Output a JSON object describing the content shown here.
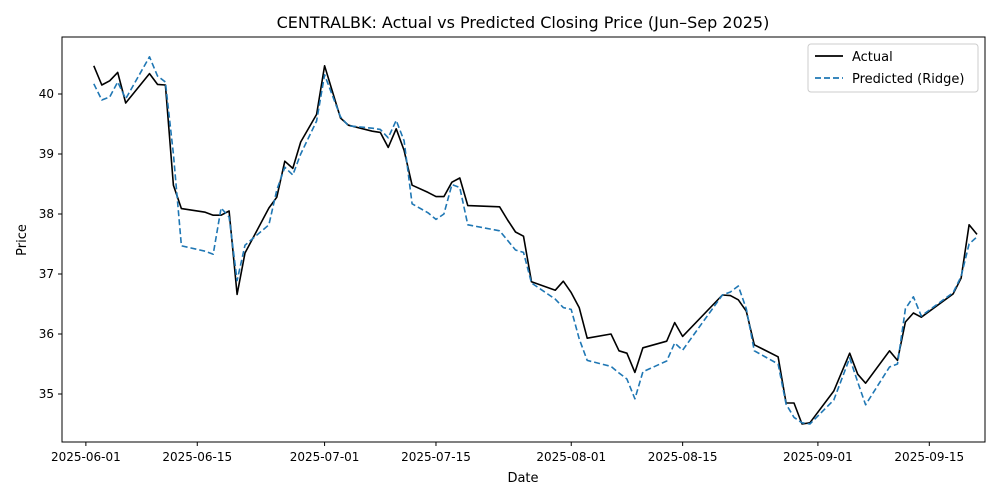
{
  "chart_data": {
    "type": "line",
    "title": "CENTRALBK: Actual vs Predicted Closing Price (Jun–Sep 2025)",
    "xlabel": "Date",
    "ylabel": "Price",
    "xlim": [
      "2025-05-29",
      "2025-09-22"
    ],
    "ylim": [
      34.2,
      40.95
    ],
    "x_ticks": [
      "2025-06-01",
      "2025-06-15",
      "2025-07-01",
      "2025-07-15",
      "2025-08-01",
      "2025-08-15",
      "2025-09-01",
      "2025-09-15"
    ],
    "y_ticks": [
      35,
      36,
      37,
      38,
      39,
      40
    ],
    "grid": false,
    "legend_position": "top-right",
    "series": [
      {
        "name": "Actual",
        "color": "#000000",
        "style": "solid",
        "points": [
          [
            "2025-06-02",
            40.47
          ],
          [
            "2025-06-03",
            40.15
          ],
          [
            "2025-06-04",
            40.22
          ],
          [
            "2025-06-05",
            40.36
          ],
          [
            "2025-06-06",
            39.85
          ],
          [
            "2025-06-09",
            40.34
          ],
          [
            "2025-06-10",
            40.16
          ],
          [
            "2025-06-11",
            40.15
          ],
          [
            "2025-06-12",
            38.48
          ],
          [
            "2025-06-13",
            38.09
          ],
          [
            "2025-06-16",
            38.03
          ],
          [
            "2025-06-17",
            37.98
          ],
          [
            "2025-06-18",
            37.98
          ],
          [
            "2025-06-19",
            38.05
          ],
          [
            "2025-06-20",
            36.66
          ],
          [
            "2025-06-21",
            37.35
          ],
          [
            "2025-06-24",
            38.1
          ],
          [
            "2025-06-25",
            38.28
          ],
          [
            "2025-06-26",
            38.88
          ],
          [
            "2025-06-27",
            38.76
          ],
          [
            "2025-06-28",
            39.2
          ],
          [
            "2025-06-30",
            39.66
          ],
          [
            "2025-07-01",
            40.47
          ],
          [
            "2025-07-03",
            39.6
          ],
          [
            "2025-07-04",
            39.48
          ],
          [
            "2025-07-07",
            39.38
          ],
          [
            "2025-07-08",
            39.36
          ],
          [
            "2025-07-09",
            39.11
          ],
          [
            "2025-07-10",
            39.42
          ],
          [
            "2025-07-11",
            39.06
          ],
          [
            "2025-07-12",
            38.48
          ],
          [
            "2025-07-14",
            38.36
          ],
          [
            "2025-07-15",
            38.29
          ],
          [
            "2025-07-16",
            38.29
          ],
          [
            "2025-07-17",
            38.53
          ],
          [
            "2025-07-18",
            38.6
          ],
          [
            "2025-07-19",
            38.14
          ],
          [
            "2025-07-23",
            38.12
          ],
          [
            "2025-07-24",
            37.9
          ],
          [
            "2025-07-25",
            37.7
          ],
          [
            "2025-07-26",
            37.63
          ],
          [
            "2025-07-27",
            36.87
          ],
          [
            "2025-07-30",
            36.73
          ],
          [
            "2025-07-31",
            36.88
          ],
          [
            "2025-08-01",
            36.69
          ],
          [
            "2025-08-02",
            36.44
          ],
          [
            "2025-08-03",
            35.93
          ],
          [
            "2025-08-06",
            36.0
          ],
          [
            "2025-08-07",
            35.72
          ],
          [
            "2025-08-08",
            35.68
          ],
          [
            "2025-08-09",
            35.36
          ],
          [
            "2025-08-10",
            35.77
          ],
          [
            "2025-08-13",
            35.88
          ],
          [
            "2025-08-14",
            36.19
          ],
          [
            "2025-08-15",
            35.96
          ],
          [
            "2025-08-20",
            36.65
          ],
          [
            "2025-08-21",
            36.64
          ],
          [
            "2025-08-22",
            36.57
          ],
          [
            "2025-08-23",
            36.38
          ],
          [
            "2025-08-24",
            35.82
          ],
          [
            "2025-08-27",
            35.62
          ],
          [
            "2025-08-28",
            34.85
          ],
          [
            "2025-08-29",
            34.85
          ],
          [
            "2025-08-30",
            34.5
          ],
          [
            "2025-08-31",
            34.52
          ],
          [
            "2025-09-03",
            35.05
          ],
          [
            "2025-09-05",
            35.68
          ],
          [
            "2025-09-06",
            35.33
          ],
          [
            "2025-09-07",
            35.18
          ],
          [
            "2025-09-10",
            35.72
          ],
          [
            "2025-09-11",
            35.56
          ],
          [
            "2025-09-12",
            36.2
          ],
          [
            "2025-09-13",
            36.35
          ],
          [
            "2025-09-14",
            36.28
          ],
          [
            "2025-09-18",
            36.67
          ],
          [
            "2025-09-19",
            36.93
          ],
          [
            "2025-09-20",
            37.82
          ],
          [
            "2025-09-21",
            37.66
          ]
        ]
      },
      {
        "name": "Predicted (Ridge)",
        "color": "#1f77b4",
        "style": "dashed",
        "points": [
          [
            "2025-06-02",
            40.17
          ],
          [
            "2025-06-03",
            39.9
          ],
          [
            "2025-06-04",
            39.95
          ],
          [
            "2025-06-05",
            40.2
          ],
          [
            "2025-06-06",
            39.92
          ],
          [
            "2025-06-09",
            40.62
          ],
          [
            "2025-06-10",
            40.3
          ],
          [
            "2025-06-11",
            40.2
          ],
          [
            "2025-06-12",
            39.0
          ],
          [
            "2025-06-13",
            37.47
          ],
          [
            "2025-06-16",
            37.38
          ],
          [
            "2025-06-17",
            37.33
          ],
          [
            "2025-06-18",
            38.1
          ],
          [
            "2025-06-19",
            37.95
          ],
          [
            "2025-06-20",
            36.89
          ],
          [
            "2025-06-21",
            37.48
          ],
          [
            "2025-06-24",
            37.82
          ],
          [
            "2025-06-25",
            38.4
          ],
          [
            "2025-06-26",
            38.78
          ],
          [
            "2025-06-27",
            38.65
          ],
          [
            "2025-06-28",
            39.0
          ],
          [
            "2025-06-30",
            39.55
          ],
          [
            "2025-07-01",
            40.32
          ],
          [
            "2025-07-03",
            39.62
          ],
          [
            "2025-07-04",
            39.47
          ],
          [
            "2025-07-07",
            39.43
          ],
          [
            "2025-07-08",
            39.41
          ],
          [
            "2025-07-09",
            39.27
          ],
          [
            "2025-07-10",
            39.56
          ],
          [
            "2025-07-11",
            39.22
          ],
          [
            "2025-07-12",
            38.17
          ],
          [
            "2025-07-14",
            38.02
          ],
          [
            "2025-07-15",
            37.91
          ],
          [
            "2025-07-16",
            38.0
          ],
          [
            "2025-07-17",
            38.49
          ],
          [
            "2025-07-18",
            38.44
          ],
          [
            "2025-07-19",
            37.82
          ],
          [
            "2025-07-23",
            37.72
          ],
          [
            "2025-07-24",
            37.56
          ],
          [
            "2025-07-25",
            37.4
          ],
          [
            "2025-07-26",
            37.36
          ],
          [
            "2025-07-27",
            36.85
          ],
          [
            "2025-07-30",
            36.58
          ],
          [
            "2025-07-31",
            36.44
          ],
          [
            "2025-08-01",
            36.41
          ],
          [
            "2025-08-02",
            35.92
          ],
          [
            "2025-08-03",
            35.56
          ],
          [
            "2025-08-06",
            35.46
          ],
          [
            "2025-08-07",
            35.35
          ],
          [
            "2025-08-08",
            35.25
          ],
          [
            "2025-08-09",
            34.92
          ],
          [
            "2025-08-10",
            35.37
          ],
          [
            "2025-08-13",
            35.55
          ],
          [
            "2025-08-14",
            35.85
          ],
          [
            "2025-08-15",
            35.73
          ],
          [
            "2025-08-20",
            36.65
          ],
          [
            "2025-08-21",
            36.7
          ],
          [
            "2025-08-22",
            36.8
          ],
          [
            "2025-08-23",
            36.42
          ],
          [
            "2025-08-24",
            35.72
          ],
          [
            "2025-08-27",
            35.5
          ],
          [
            "2025-08-28",
            34.83
          ],
          [
            "2025-08-29",
            34.61
          ],
          [
            "2025-08-30",
            34.52
          ],
          [
            "2025-08-31",
            34.5
          ],
          [
            "2025-09-03",
            34.9
          ],
          [
            "2025-09-05",
            35.6
          ],
          [
            "2025-09-06",
            35.2
          ],
          [
            "2025-09-07",
            34.82
          ],
          [
            "2025-09-10",
            35.45
          ],
          [
            "2025-09-11",
            35.5
          ],
          [
            "2025-09-12",
            36.42
          ],
          [
            "2025-09-13",
            36.62
          ],
          [
            "2025-09-14",
            36.3
          ],
          [
            "2025-09-18",
            36.69
          ],
          [
            "2025-09-19",
            36.96
          ],
          [
            "2025-09-20",
            37.5
          ],
          [
            "2025-09-21",
            37.62
          ]
        ]
      }
    ]
  }
}
